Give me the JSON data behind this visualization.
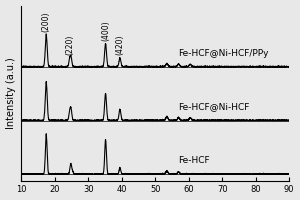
{
  "title": "",
  "xlabel": "",
  "ylabel": "Intensity (a.u.)",
  "xlim": [
    10,
    90
  ],
  "x_ticks": [
    10,
    20,
    30,
    40,
    50,
    60,
    70,
    80,
    90
  ],
  "peak_labels": [
    "(200)",
    "(220)",
    "(400)",
    "(420)"
  ],
  "series_labels": [
    "Fe-HCF@Ni-HCF/PPy",
    "Fe-HCF@Ni-HCF",
    "Fe-HCF"
  ],
  "offsets": [
    1.4,
    0.7,
    0.0
  ],
  "background_color": "#e8e8e8",
  "line_color": "#000000",
  "font_size": 6.5,
  "axis_font_size": 7
}
